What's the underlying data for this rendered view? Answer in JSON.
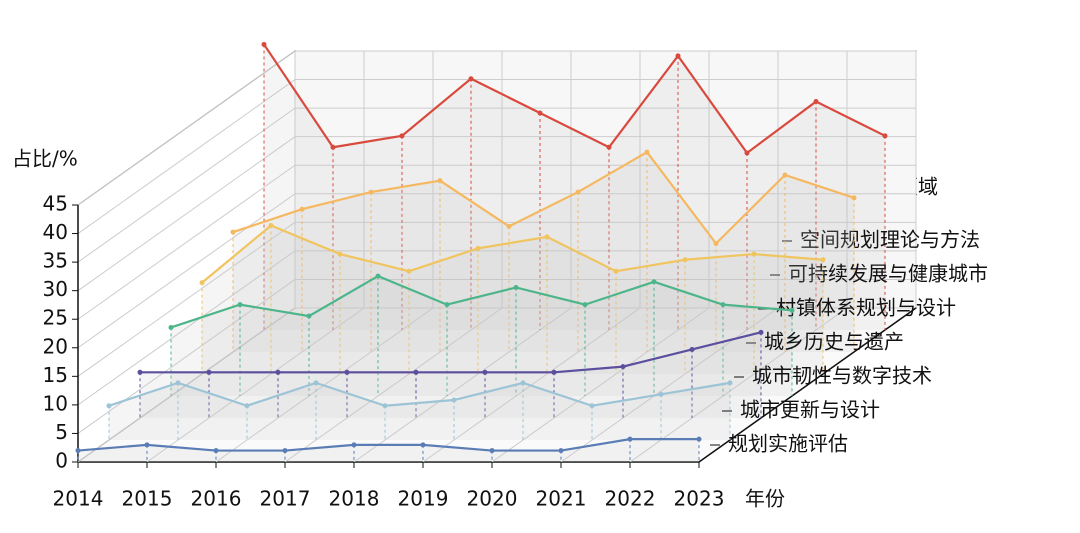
{
  "chart_data": {
    "type": "line3d",
    "ylabel": "占比/%",
    "xlabel": "年份",
    "legend_title": "关键领域",
    "categories": [
      "2014",
      "2015",
      "2016",
      "2017",
      "2018",
      "2019",
      "2020",
      "2021",
      "2022",
      "2023"
    ],
    "ylim": [
      0,
      45
    ],
    "yticks": [
      0,
      5,
      10,
      15,
      20,
      25,
      30,
      35,
      40,
      45
    ],
    "grid": true,
    "series": [
      {
        "name": "规划实施评估",
        "color": "#5a7db5",
        "values": [
          2,
          3,
          2,
          2,
          3,
          3,
          2,
          2,
          4,
          4
        ]
      },
      {
        "name": "城市更新与设计",
        "color": "#9cc4d6",
        "values": [
          6,
          10,
          6,
          10,
          6,
          7,
          10,
          6,
          8,
          10
        ]
      },
      {
        "name": "城市韧性与数字技术",
        "color": "#5b4f9e",
        "values": [
          8,
          8,
          8,
          8,
          8,
          8,
          8,
          9,
          12,
          15
        ]
      },
      {
        "name": "城乡历史与遗产",
        "color": "#4cb58a",
        "values": [
          12,
          16,
          14,
          21,
          16,
          19,
          16,
          20,
          16,
          15
        ]
      },
      {
        "name": "村镇体系规划与设计",
        "color": "#f0c560",
        "values": [
          16,
          26,
          21,
          18,
          22,
          24,
          18,
          20,
          21,
          20
        ]
      },
      {
        "name": "可持续发展与健康城市",
        "color": "#f5b860",
        "values": [
          21,
          25,
          28,
          30,
          22,
          28,
          35,
          19,
          31,
          27
        ]
      },
      {
        "name": "空间规划理论与方法",
        "color": "#d94a3d",
        "values": [
          50,
          32,
          34,
          44,
          38,
          32,
          48,
          31,
          40,
          34
        ]
      }
    ]
  }
}
